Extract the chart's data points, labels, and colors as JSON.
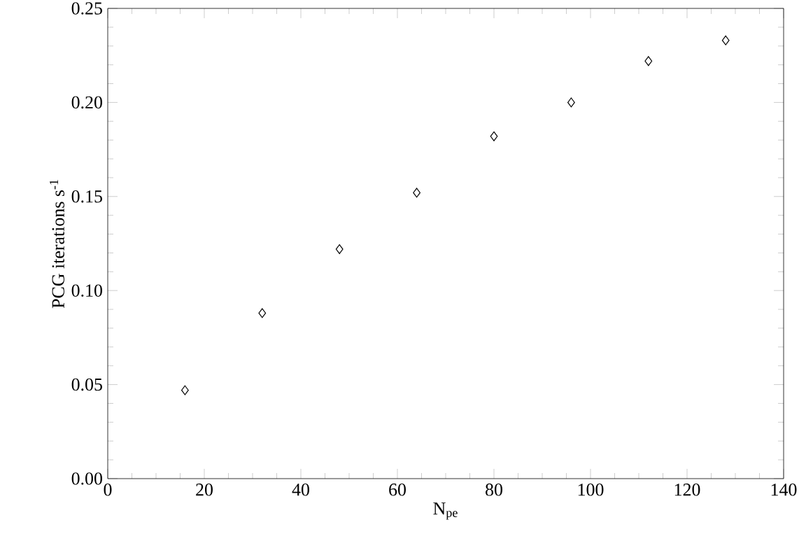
{
  "chart_data": {
    "type": "scatter",
    "xlabel": "N$_{pe}$",
    "ylabel": "PCG iterations s$^{-1}$",
    "x": [
      16,
      32,
      48,
      64,
      80,
      96,
      112,
      128
    ],
    "values": [
      0.047,
      0.088,
      0.122,
      0.152,
      0.182,
      0.2,
      0.222,
      0.233
    ],
    "color": "#000000",
    "marker": "diamond",
    "xlim": [
      0,
      140
    ],
    "ylim": [
      0,
      0.25
    ],
    "xticks": [
      0,
      20,
      40,
      60,
      80,
      100,
      120,
      140
    ],
    "yticks": [
      {
        "value": 0,
        "label": "0.00"
      },
      {
        "value": 0.05,
        "label": "0.05"
      },
      {
        "value": 0.1,
        "label": "0.10"
      },
      {
        "value": 0.15,
        "label": "0.15"
      },
      {
        "value": 0.2,
        "label": "0.20"
      },
      {
        "value": 0.25,
        "label": "0.25"
      }
    ],
    "grid": false
  }
}
